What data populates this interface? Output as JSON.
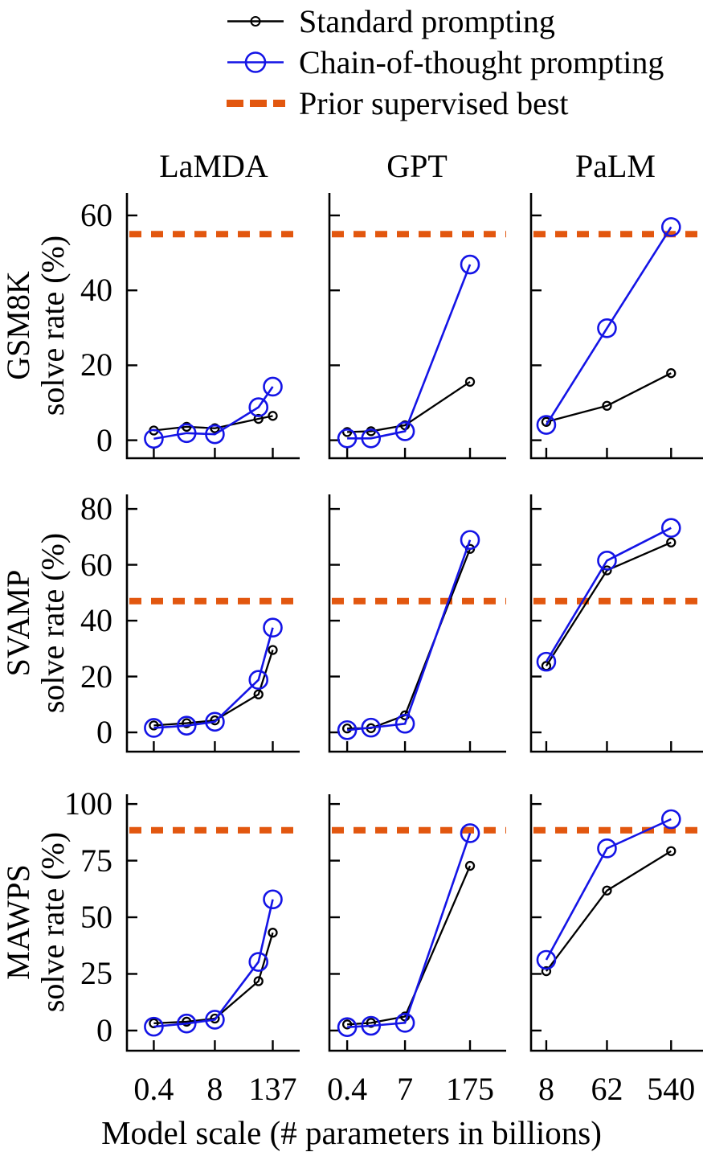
{
  "legend": {
    "items": [
      {
        "label": "Standard prompting",
        "series": "standard",
        "marker": "small-open-circle-line"
      },
      {
        "label": "Chain-of-thought prompting",
        "series": "cot",
        "marker": "large-open-circle-line"
      },
      {
        "label": "Prior supervised best",
        "series": "prior",
        "marker": "thick-dashed-line"
      }
    ]
  },
  "chart_data": {
    "type": "line",
    "xscale": "log",
    "xlabel": "Model scale (# parameters in billions)",
    "ylabel": "solve rate (%)",
    "legend_position": "top",
    "grid": false,
    "colors": {
      "standard": "#000000",
      "cot": "#1414e6",
      "prior": "#e2570f"
    },
    "columns": [
      {
        "name": "LaMDA",
        "xtick_values": [
          0.4,
          8,
          137
        ],
        "xtick_labels": [
          "0.4",
          "8",
          "137"
        ]
      },
      {
        "name": "GPT",
        "xtick_values": [
          0.4,
          7,
          175
        ],
        "xtick_labels": [
          "0.4",
          "7",
          "175"
        ]
      },
      {
        "name": "PaLM",
        "xtick_values": [
          8,
          62,
          540
        ],
        "xtick_labels": [
          "8",
          "62",
          "540"
        ]
      }
    ],
    "rows": [
      {
        "name": "GSM8K",
        "ylabel": "solve rate (%)",
        "yticks": [
          0,
          20,
          40,
          60
        ],
        "ylim": [
          -4.8,
          66.0
        ],
        "prior_best": 55
      },
      {
        "name": "SVAMP",
        "ylabel": "solve rate (%)",
        "yticks": [
          0,
          20,
          40,
          60,
          80
        ],
        "ylim": [
          -6.9,
          85.2
        ],
        "prior_best": 47
      },
      {
        "name": "MAWPS",
        "ylabel": "solve rate (%)",
        "yticks": [
          0,
          25,
          50,
          75,
          100
        ],
        "ylim": [
          -8.9,
          104.3
        ],
        "prior_best": 88.4
      }
    ],
    "panels": [
      {
        "benchmark": "GSM8K",
        "model_family": "LaMDA",
        "x": [
          0.4,
          2,
          8,
          68,
          137
        ],
        "series": {
          "standard": [
            2.6,
            3.6,
            3.2,
            5.7,
            6.5
          ],
          "cot": [
            0.4,
            1.9,
            1.6,
            8.8,
            14.3
          ]
        },
        "prior_best": 55
      },
      {
        "benchmark": "GSM8K",
        "model_family": "GPT",
        "x": [
          0.4,
          1.3,
          7,
          175
        ],
        "series": {
          "standard": [
            2.2,
            2.4,
            4.0,
            15.6
          ],
          "cot": [
            0.5,
            0.5,
            2.4,
            46.9
          ]
        },
        "prior_best": 55
      },
      {
        "benchmark": "GSM8K",
        "model_family": "PaLM",
        "x": [
          8,
          62,
          540
        ],
        "series": {
          "standard": [
            4.9,
            9.2,
            17.9
          ],
          "cot": [
            4.1,
            29.9,
            56.9
          ]
        },
        "prior_best": 55
      },
      {
        "benchmark": "SVAMP",
        "model_family": "LaMDA",
        "x": [
          0.4,
          2,
          8,
          68,
          137
        ],
        "series": {
          "standard": [
            2.5,
            3.3,
            4.3,
            13.6,
            29.5
          ],
          "cot": [
            1.6,
            2.4,
            3.8,
            18.8,
            37.5
          ]
        },
        "prior_best": 47
      },
      {
        "benchmark": "SVAMP",
        "model_family": "GPT",
        "x": [
          0.4,
          1.3,
          7,
          175
        ],
        "series": {
          "standard": [
            1.4,
            1.5,
            6.1,
            65.7
          ],
          "cot": [
            0.8,
            1.7,
            3.1,
            68.9
          ]
        },
        "prior_best": 47
      },
      {
        "benchmark": "SVAMP",
        "model_family": "PaLM",
        "x": [
          8,
          62,
          540
        ],
        "series": {
          "standard": [
            23.8,
            58.0,
            68.0
          ],
          "cot": [
            25.3,
            61.5,
            73.2
          ]
        },
        "prior_best": 47
      },
      {
        "benchmark": "MAWPS",
        "model_family": "LaMDA",
        "x": [
          0.4,
          2,
          8,
          68,
          137
        ],
        "series": {
          "standard": [
            3.2,
            3.9,
            5.3,
            21.8,
            43.2
          ],
          "cot": [
            1.7,
            3.1,
            4.8,
            30.3,
            57.9
          ]
        },
        "prior_best": 88.4
      },
      {
        "benchmark": "MAWPS",
        "model_family": "GPT",
        "x": [
          0.4,
          1.3,
          7,
          175
        ],
        "series": {
          "standard": [
            2.7,
            3.4,
            6.2,
            72.7
          ],
          "cot": [
            1.5,
            2.1,
            3.4,
            87.1
          ]
        },
        "prior_best": 88.4
      },
      {
        "benchmark": "MAWPS",
        "model_family": "PaLM",
        "x": [
          8,
          62,
          540
        ],
        "series": {
          "standard": [
            26.2,
            61.8,
            79.2
          ],
          "cot": [
            31.2,
            80.4,
            93.3
          ]
        },
        "prior_best": 88.4
      }
    ]
  }
}
